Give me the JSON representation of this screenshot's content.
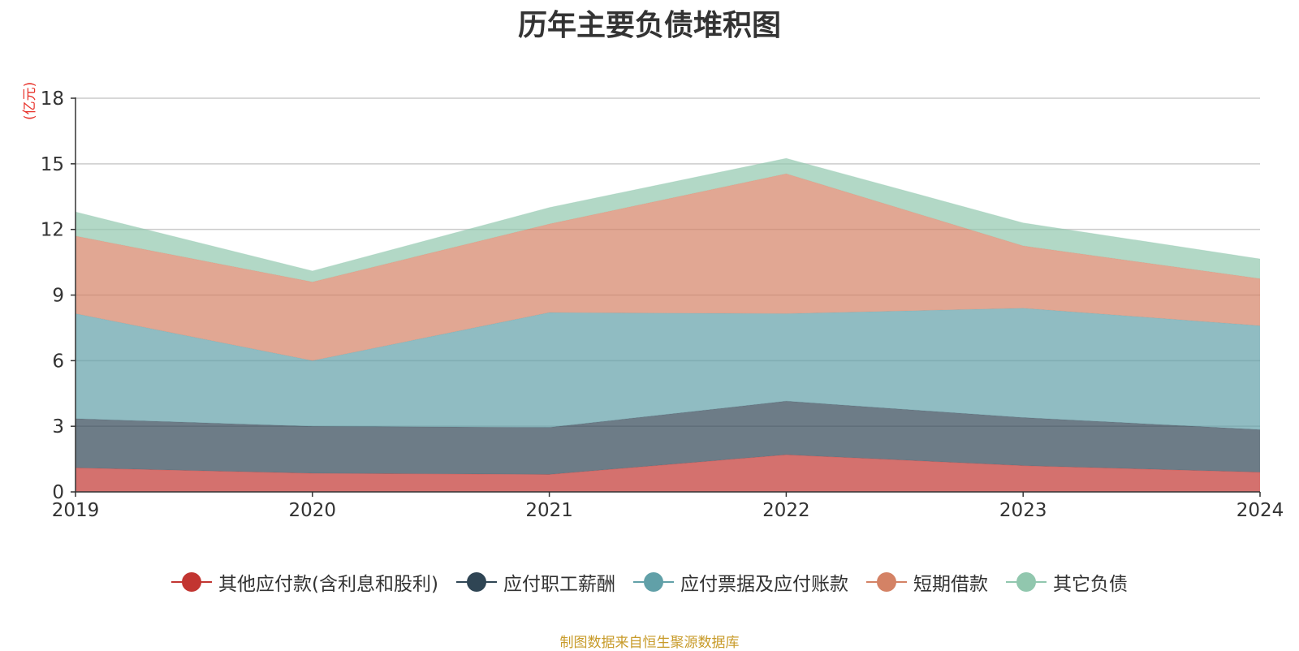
{
  "chart_data": {
    "type": "area",
    "stacked": true,
    "title": "历年主要负债堆积图",
    "ylabel": "(亿元)",
    "xlabel": "",
    "categories": [
      "2019",
      "2020",
      "2021",
      "2022",
      "2023",
      "2024"
    ],
    "ylim": [
      0,
      18
    ],
    "yticks": [
      0,
      3,
      6,
      9,
      12,
      15,
      18
    ],
    "grid": true,
    "legend_position": "bottom",
    "series": [
      {
        "name": "其他应付款(含利息和股利)",
        "color": "#c23531",
        "values": [
          1.1,
          0.85,
          0.8,
          1.7,
          1.2,
          0.9
        ]
      },
      {
        "name": "应付职工薪酬",
        "color": "#2f4554",
        "values": [
          2.25,
          2.15,
          2.15,
          2.45,
          2.2,
          1.95
        ]
      },
      {
        "name": "应付票据及应付账款",
        "color": "#61a0a8",
        "values": [
          4.8,
          3.0,
          5.25,
          4.0,
          5.0,
          4.75
        ]
      },
      {
        "name": "短期借款",
        "color": "#d48265",
        "values": [
          3.55,
          3.6,
          4.05,
          6.4,
          2.85,
          2.15
        ]
      },
      {
        "name": "其它负债",
        "color": "#91c7ae",
        "values": [
          1.1,
          0.5,
          0.75,
          0.7,
          1.05,
          0.9
        ]
      }
    ]
  },
  "footer": {
    "source": "制图数据来自恒生聚源数据库"
  }
}
